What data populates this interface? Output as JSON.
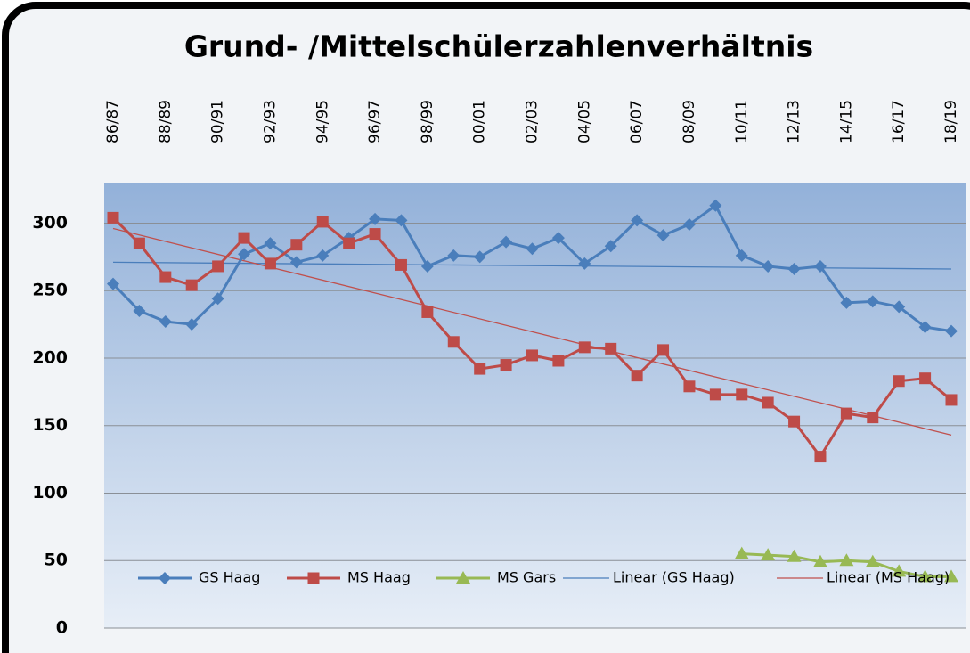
{
  "chart_data": {
    "type": "line",
    "title": "Grund- /Mittelschülerzahlenverhältnis",
    "categories": [
      "86/87",
      null,
      "88/89",
      null,
      "90/91",
      null,
      "92/93",
      null,
      "94/95",
      null,
      "96/97",
      null,
      "98/99",
      null,
      "00/01",
      null,
      "02/03",
      null,
      "04/05",
      null,
      "06/07",
      null,
      "08/09",
      null,
      "10/11",
      null,
      "12/13",
      null,
      "14/15",
      null,
      "16/17",
      null,
      "18/19"
    ],
    "series": [
      {
        "name": "GS Haag",
        "color": "#4a7ebb",
        "marker": "diamond",
        "values": [
          255,
          235,
          227,
          225,
          244,
          277,
          285,
          271,
          276,
          289,
          303,
          302,
          268,
          276,
          275,
          286,
          281,
          289,
          270,
          283,
          302,
          291,
          299,
          313,
          276,
          268,
          266,
          268,
          241,
          242,
          238,
          223,
          220
        ]
      },
      {
        "name": "MS Haag",
        "color": "#be4b48",
        "marker": "square",
        "values": [
          304,
          285,
          260,
          254,
          268,
          289,
          270,
          284,
          301,
          285,
          292,
          269,
          234,
          212,
          192,
          195,
          202,
          198,
          208,
          207,
          187,
          206,
          179,
          173,
          173,
          167,
          153,
          127,
          159,
          156,
          183,
          185,
          169
        ]
      },
      {
        "name": "MS Gars",
        "color": "#98b954",
        "marker": "triangle",
        "values": [
          null,
          null,
          null,
          null,
          null,
          null,
          null,
          null,
          null,
          null,
          null,
          null,
          null,
          null,
          null,
          null,
          null,
          null,
          null,
          null,
          null,
          null,
          null,
          null,
          55,
          54,
          53,
          49,
          50,
          49,
          42,
          38,
          38
        ]
      }
    ],
    "trendlines": [
      {
        "name": "Linear (GS Haag)",
        "color": "#4a7ebb",
        "start": 271,
        "end": 266
      },
      {
        "name": "Linear (MS Haag)",
        "color": "#c0504d",
        "start": 296,
        "end": 143
      }
    ],
    "ylim": [
      0,
      330
    ],
    "yticks": [
      0,
      50,
      100,
      150,
      200,
      250,
      300
    ],
    "grid": true,
    "legend": "bottom"
  }
}
